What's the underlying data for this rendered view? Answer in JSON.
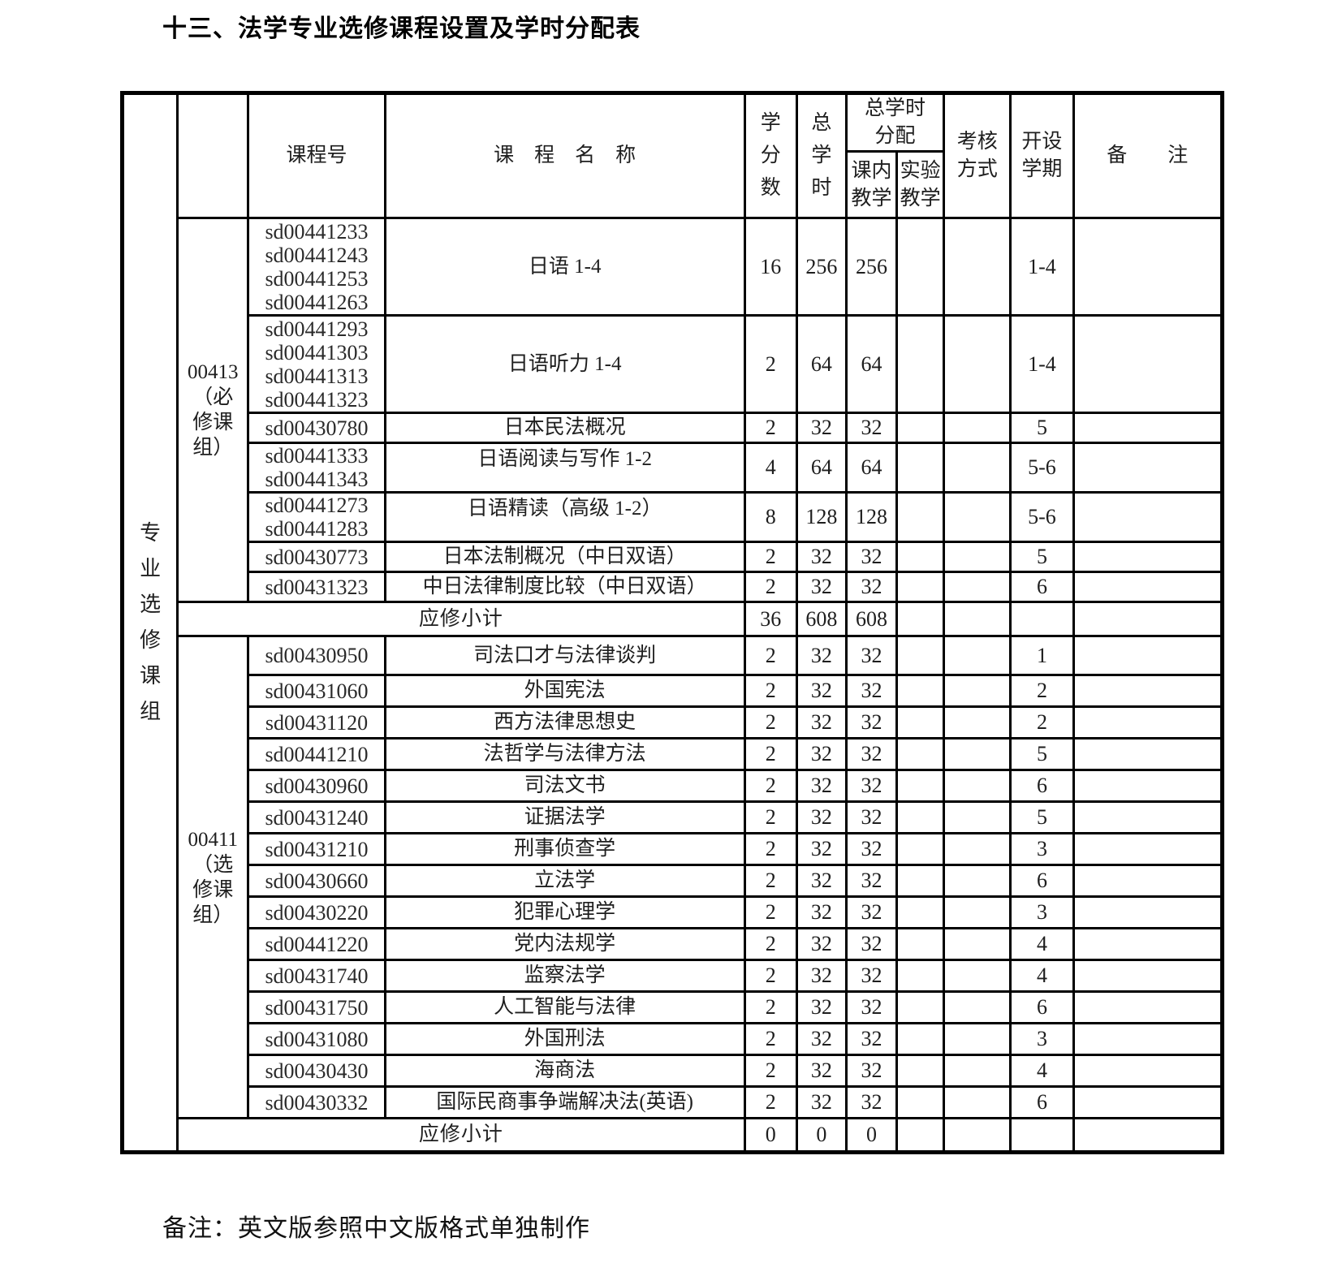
{
  "page": {
    "title": "十三、法学专业选修课程设置及学时分配表",
    "footnote": "备注：英文版参照中文版格式单独制作"
  },
  "table": {
    "side_label": "专\n业\n选\n修\n课\n组",
    "header": {
      "course_no": "课程号",
      "course_name": "课　程　名　称",
      "credits": "学\n分\n数",
      "total_hours": "总\n学\n时",
      "hours_alloc": "总学时\n分配",
      "in_class": "课内\n教学",
      "experiment": "实验\n教学",
      "assessment": "考核\n方式",
      "semester": "开设\n学期",
      "notes": "备　　注"
    },
    "groups": [
      {
        "label": "00413\n（必\n修课\n组）",
        "rows": [
          {
            "no": [
              "sd00441233",
              "sd00441243",
              "sd00441253",
              "sd00441263"
            ],
            "name": "日语 1-4",
            "credits": "16",
            "total": "256",
            "in_class": "256",
            "experiment": "",
            "assessment": "",
            "semester": "1-4",
            "notes": ""
          },
          {
            "no": [
              "sd00441293",
              "sd00441303",
              "sd00441313",
              "sd00441323"
            ],
            "name": "日语听力 1-4",
            "credits": "2",
            "total": "64",
            "in_class": "64",
            "experiment": "",
            "assessment": "",
            "semester": "1-4",
            "notes": ""
          },
          {
            "no": [
              "sd00430780"
            ],
            "name": "日本民法概况",
            "credits": "2",
            "total": "32",
            "in_class": "32",
            "experiment": "",
            "assessment": "",
            "semester": "5",
            "notes": ""
          },
          {
            "no": [
              "sd00441333",
              "sd00441343"
            ],
            "name": "日语阅读与写作 1-2",
            "credits": "4",
            "total": "64",
            "in_class": "64",
            "experiment": "",
            "assessment": "",
            "semester": "5-6",
            "notes": ""
          },
          {
            "no": [
              "sd00441273",
              "sd00441283"
            ],
            "name": "日语精读（高级 1-2）",
            "credits": "8",
            "total": "128",
            "in_class": "128",
            "experiment": "",
            "assessment": "",
            "semester": "5-6",
            "notes": ""
          },
          {
            "no": [
              "sd00430773"
            ],
            "name": "日本法制概况（中日双语）",
            "credits": "2",
            "total": "32",
            "in_class": "32",
            "experiment": "",
            "assessment": "",
            "semester": "5",
            "notes": ""
          },
          {
            "no": [
              "sd00431323"
            ],
            "name": "中日法律制度比较（中日双语）",
            "credits": "2",
            "total": "32",
            "in_class": "32",
            "experiment": "",
            "assessment": "",
            "semester": "6",
            "notes": ""
          }
        ],
        "subtotal": {
          "label": "应修小计",
          "credits": "36",
          "total": "608",
          "in_class": "608",
          "experiment": "",
          "assessment": "",
          "semester": "",
          "notes": ""
        }
      },
      {
        "label": "00411\n（选\n修课\n组）",
        "rows": [
          {
            "no": [
              "sd00430950"
            ],
            "name": "司法口才与法律谈判",
            "credits": "2",
            "total": "32",
            "in_class": "32",
            "experiment": "",
            "assessment": "",
            "semester": "1",
            "notes": ""
          },
          {
            "no": [
              "sd00431060"
            ],
            "name": "外国宪法",
            "credits": "2",
            "total": "32",
            "in_class": "32",
            "experiment": "",
            "assessment": "",
            "semester": "2",
            "notes": ""
          },
          {
            "no": [
              "sd00431120"
            ],
            "name": "西方法律思想史",
            "credits": "2",
            "total": "32",
            "in_class": "32",
            "experiment": "",
            "assessment": "",
            "semester": "2",
            "notes": ""
          },
          {
            "no": [
              "sd00441210"
            ],
            "name": "法哲学与法律方法",
            "credits": "2",
            "total": "32",
            "in_class": "32",
            "experiment": "",
            "assessment": "",
            "semester": "5",
            "notes": ""
          },
          {
            "no": [
              "sd00430960"
            ],
            "name": "司法文书",
            "credits": "2",
            "total": "32",
            "in_class": "32",
            "experiment": "",
            "assessment": "",
            "semester": "6",
            "notes": ""
          },
          {
            "no": [
              "sd00431240"
            ],
            "name": "证据法学",
            "credits": "2",
            "total": "32",
            "in_class": "32",
            "experiment": "",
            "assessment": "",
            "semester": "5",
            "notes": ""
          },
          {
            "no": [
              "sd00431210"
            ],
            "name": "刑事侦查学",
            "credits": "2",
            "total": "32",
            "in_class": "32",
            "experiment": "",
            "assessment": "",
            "semester": "3",
            "notes": ""
          },
          {
            "no": [
              "sd00430660"
            ],
            "name": "立法学",
            "credits": "2",
            "total": "32",
            "in_class": "32",
            "experiment": "",
            "assessment": "",
            "semester": "6",
            "notes": ""
          },
          {
            "no": [
              "sd00430220"
            ],
            "name": "犯罪心理学",
            "credits": "2",
            "total": "32",
            "in_class": "32",
            "experiment": "",
            "assessment": "",
            "semester": "3",
            "notes": ""
          },
          {
            "no": [
              "sd00441220"
            ],
            "name": "党内法规学",
            "credits": "2",
            "total": "32",
            "in_class": "32",
            "experiment": "",
            "assessment": "",
            "semester": "4",
            "notes": ""
          },
          {
            "no": [
              "sd00431740"
            ],
            "name": "监察法学",
            "credits": "2",
            "total": "32",
            "in_class": "32",
            "experiment": "",
            "assessment": "",
            "semester": "4",
            "notes": ""
          },
          {
            "no": [
              "sd00431750"
            ],
            "name": "人工智能与法律",
            "credits": "2",
            "total": "32",
            "in_class": "32",
            "experiment": "",
            "assessment": "",
            "semester": "6",
            "notes": ""
          },
          {
            "no": [
              "sd00431080"
            ],
            "name": "外国刑法",
            "credits": "2",
            "total": "32",
            "in_class": "32",
            "experiment": "",
            "assessment": "",
            "semester": "3",
            "notes": ""
          },
          {
            "no": [
              "sd00430430"
            ],
            "name": "海商法",
            "credits": "2",
            "total": "32",
            "in_class": "32",
            "experiment": "",
            "assessment": "",
            "semester": "4",
            "notes": ""
          },
          {
            "no": [
              "sd00430332"
            ],
            "name": "国际民商事争端解决法(英语)",
            "credits": "2",
            "total": "32",
            "in_class": "32",
            "experiment": "",
            "assessment": "",
            "semester": "6",
            "notes": ""
          }
        ],
        "subtotal": {
          "label": "应修小计",
          "credits": "0",
          "total": "0",
          "in_class": "0",
          "experiment": "",
          "assessment": "",
          "semester": "",
          "notes": ""
        }
      }
    ]
  }
}
